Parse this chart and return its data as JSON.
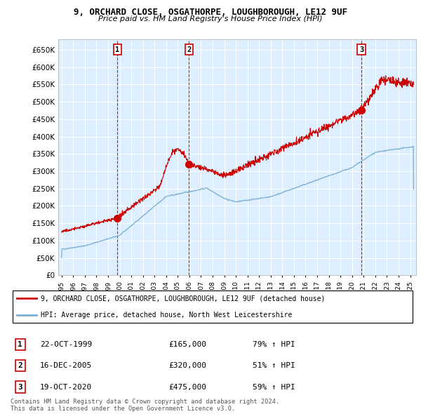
{
  "title_line1": "9, ORCHARD CLOSE, OSGATHORPE, LOUGHBOROUGH, LE12 9UF",
  "title_line2": "Price paid vs. HM Land Registry's House Price Index (HPI)",
  "ytick_vals": [
    0,
    50000,
    100000,
    150000,
    200000,
    250000,
    300000,
    350000,
    400000,
    450000,
    500000,
    550000,
    600000,
    650000
  ],
  "ylim": [
    0,
    680000
  ],
  "xlim_start": 1994.7,
  "xlim_end": 2025.5,
  "legend_line1": "9, ORCHARD CLOSE, OSGATHORPE, LOUGHBOROUGH, LE12 9UF (detached house)",
  "legend_line2": "HPI: Average price, detached house, North West Leicestershire",
  "sale1_date": "22-OCT-1999",
  "sale1_price": "£165,000",
  "sale1_hpi": "79% ↑ HPI",
  "sale1_year": 1999.8,
  "sale1_value": 165000,
  "sale2_date": "16-DEC-2005",
  "sale2_price": "£320,000",
  "sale2_hpi": "51% ↑ HPI",
  "sale2_year": 2005.96,
  "sale2_value": 320000,
  "sale3_date": "19-OCT-2020",
  "sale3_price": "£475,000",
  "sale3_hpi": "59% ↑ HPI",
  "sale3_year": 2020.8,
  "sale3_value": 475000,
  "red_color": "#cc0000",
  "blue_color": "#7aafd4",
  "bg_color": "#ddeeff",
  "footer_line1": "Contains HM Land Registry data © Crown copyright and database right 2024.",
  "footer_line2": "This data is licensed under the Open Government Licence v3.0."
}
